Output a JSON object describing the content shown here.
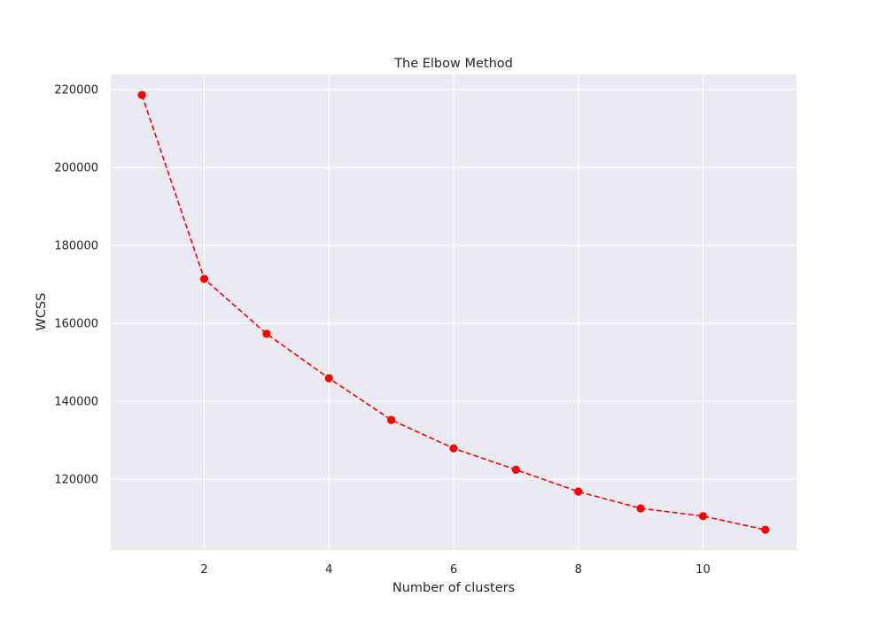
{
  "chart_data": {
    "type": "line",
    "title": "The Elbow Method",
    "xlabel": "Number of clusters",
    "ylabel": "WCSS",
    "x": [
      1,
      2,
      3,
      4,
      5,
      6,
      7,
      8,
      9,
      10,
      11
    ],
    "series": [
      {
        "values": [
          218600,
          171400,
          157300,
          145900,
          135200,
          127900,
          122400,
          116800,
          112500,
          110500,
          107000
        ],
        "color": "#ff0000",
        "line_style": "dashed",
        "marker": "circle"
      }
    ],
    "xlim": [
      0.5,
      11.5
    ],
    "ylim": [
      101800,
      223900
    ],
    "x_ticks": [
      2,
      4,
      6,
      8,
      10
    ],
    "y_ticks": [
      120000,
      140000,
      160000,
      180000,
      200000,
      220000
    ],
    "grid": true,
    "background_color": "#eaeaf2",
    "grid_color": "#ffffff"
  }
}
